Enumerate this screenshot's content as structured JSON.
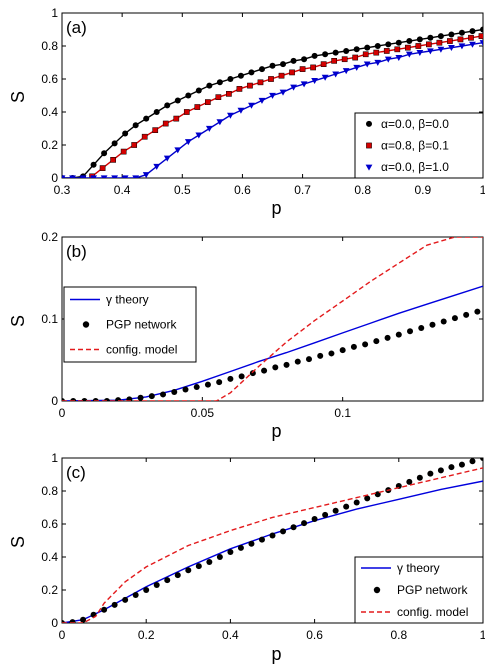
{
  "chart_data": [
    {
      "panel_label": "(a)",
      "type": "line",
      "xlabel": "p",
      "ylabel": "S",
      "xlim": [
        0.3,
        1.0
      ],
      "ylim": [
        0,
        1
      ],
      "xticks": [
        "0.3",
        "0.4",
        "0.5",
        "0.6",
        "0.7",
        "0.8",
        "0.9",
        "1"
      ],
      "yticks": [
        "0",
        "0.2",
        "0.4",
        "0.6",
        "0.8",
        "1"
      ],
      "legend_position": "bottom-right",
      "series": [
        {
          "name": "α=0.0, β=0.0",
          "color": "#000000",
          "marker": "circle",
          "x": [
            0.3,
            0.3175,
            0.335,
            0.3525,
            0.37,
            0.3875,
            0.405,
            0.4225,
            0.44,
            0.4575,
            0.475,
            0.4925,
            0.51,
            0.5275,
            0.545,
            0.5625,
            0.58,
            0.5975,
            0.615,
            0.6325,
            0.65,
            0.6675,
            0.685,
            0.7025,
            0.72,
            0.7375,
            0.755,
            0.7725,
            0.79,
            0.8075,
            0.825,
            0.8425,
            0.86,
            0.8775,
            0.895,
            0.9125,
            0.93,
            0.9475,
            0.965,
            0.9825,
            1.0
          ],
          "y": [
            0.0,
            0.0,
            0.01,
            0.08,
            0.15,
            0.21,
            0.27,
            0.32,
            0.36,
            0.4,
            0.44,
            0.47,
            0.5,
            0.53,
            0.56,
            0.58,
            0.6,
            0.62,
            0.64,
            0.66,
            0.68,
            0.69,
            0.71,
            0.72,
            0.74,
            0.75,
            0.76,
            0.77,
            0.78,
            0.79,
            0.8,
            0.81,
            0.82,
            0.83,
            0.84,
            0.85,
            0.86,
            0.87,
            0.88,
            0.89,
            0.9
          ]
        },
        {
          "name": "α=0.8, β=0.1",
          "color": "#d40000",
          "marker": "square",
          "x": [
            0.35,
            0.3675,
            0.385,
            0.4025,
            0.42,
            0.4375,
            0.455,
            0.4725,
            0.49,
            0.5075,
            0.525,
            0.5425,
            0.56,
            0.5775,
            0.595,
            0.6125,
            0.63,
            0.6475,
            0.665,
            0.6825,
            0.7,
            0.7175,
            0.735,
            0.7525,
            0.77,
            0.7875,
            0.805,
            0.8225,
            0.84,
            0.8575,
            0.875,
            0.8925,
            0.91,
            0.9275,
            0.945,
            0.9625,
            0.98,
            0.9975
          ],
          "y": [
            0.01,
            0.06,
            0.11,
            0.16,
            0.2,
            0.25,
            0.29,
            0.33,
            0.36,
            0.4,
            0.43,
            0.46,
            0.49,
            0.51,
            0.54,
            0.56,
            0.58,
            0.6,
            0.62,
            0.64,
            0.66,
            0.67,
            0.69,
            0.71,
            0.72,
            0.73,
            0.75,
            0.76,
            0.77,
            0.78,
            0.79,
            0.8,
            0.81,
            0.82,
            0.83,
            0.84,
            0.85,
            0.86
          ]
        },
        {
          "name": "α=0.0, β=1.0",
          "color": "#0000cc",
          "marker": "triangle-down",
          "x": [
            0.3,
            0.3175,
            0.335,
            0.3525,
            0.37,
            0.3875,
            0.405,
            0.4225,
            0.44,
            0.4575,
            0.475,
            0.4925,
            0.51,
            0.5275,
            0.545,
            0.5625,
            0.58,
            0.5975,
            0.615,
            0.6325,
            0.65,
            0.6675,
            0.685,
            0.7025,
            0.72,
            0.7375,
            0.755,
            0.7725,
            0.79,
            0.8075,
            0.825,
            0.8425,
            0.86,
            0.8775,
            0.895,
            0.9125,
            0.93,
            0.9475,
            0.965,
            0.9825,
            1.0
          ],
          "y": [
            0.0,
            0.0,
            0.0,
            0.0,
            0.0,
            0.0,
            0.0,
            0.0,
            0.02,
            0.07,
            0.12,
            0.17,
            0.22,
            0.26,
            0.3,
            0.34,
            0.38,
            0.41,
            0.44,
            0.47,
            0.5,
            0.52,
            0.55,
            0.57,
            0.59,
            0.61,
            0.63,
            0.65,
            0.67,
            0.69,
            0.7,
            0.72,
            0.73,
            0.75,
            0.76,
            0.77,
            0.78,
            0.79,
            0.8,
            0.81,
            0.82
          ]
        }
      ]
    },
    {
      "panel_label": "(b)",
      "type": "line",
      "xlabel": "p",
      "ylabel": "S",
      "xlim": [
        0,
        0.15
      ],
      "ylim": [
        0,
        0.2
      ],
      "xticks": [
        "0",
        "0.05",
        "0.1"
      ],
      "xtick_values": [
        0,
        0.05,
        0.1
      ],
      "yticks": [
        "0",
        "0.1",
        "0.2"
      ],
      "ytick_values": [
        0,
        0.1,
        0.2
      ],
      "legend_position": "top-left",
      "series": [
        {
          "name": "γ theory",
          "color": "#0000dd",
          "style": "solid",
          "x": [
            0,
            0.02,
            0.03,
            0.04,
            0.05,
            0.06,
            0.07,
            0.08,
            0.09,
            0.1,
            0.11,
            0.12,
            0.13,
            0.14,
            0.15
          ],
          "y": [
            0,
            0.001,
            0.005,
            0.013,
            0.024,
            0.036,
            0.048,
            0.059,
            0.071,
            0.083,
            0.095,
            0.107,
            0.118,
            0.129,
            0.14
          ]
        },
        {
          "name": "PGP network",
          "color": "#000000",
          "style": "markers",
          "x": [
            0.0,
            0.004,
            0.008,
            0.012,
            0.016,
            0.02,
            0.024,
            0.028,
            0.032,
            0.036,
            0.04,
            0.044,
            0.048,
            0.052,
            0.056,
            0.06,
            0.064,
            0.068,
            0.072,
            0.076,
            0.08,
            0.084,
            0.088,
            0.092,
            0.096,
            0.1,
            0.104,
            0.108,
            0.112,
            0.116,
            0.12,
            0.124,
            0.128,
            0.132,
            0.136,
            0.14,
            0.144,
            0.148
          ],
          "y": [
            0.0,
            0.0,
            0.0,
            0.0,
            0.0,
            0.001,
            0.002,
            0.004,
            0.006,
            0.008,
            0.011,
            0.014,
            0.017,
            0.02,
            0.023,
            0.027,
            0.03,
            0.034,
            0.037,
            0.041,
            0.044,
            0.048,
            0.051,
            0.055,
            0.058,
            0.062,
            0.066,
            0.069,
            0.073,
            0.077,
            0.081,
            0.085,
            0.089,
            0.093,
            0.097,
            0.101,
            0.105,
            0.109
          ]
        },
        {
          "name": "config. model",
          "color": "#e31a1c",
          "style": "dashed",
          "x": [
            0,
            0.04,
            0.05,
            0.055,
            0.06,
            0.07,
            0.08,
            0.09,
            0.1,
            0.11,
            0.12,
            0.13,
            0.14,
            0.15
          ],
          "y": [
            0,
            0,
            0,
            0,
            0.01,
            0.042,
            0.072,
            0.098,
            0.122,
            0.146,
            0.168,
            0.19,
            0.211,
            0.232
          ]
        }
      ]
    },
    {
      "panel_label": "(c)",
      "type": "line",
      "xlabel": "p",
      "ylabel": "S",
      "xlim": [
        0,
        1
      ],
      "ylim": [
        0,
        1
      ],
      "xticks": [
        "0",
        "0.2",
        "0.4",
        "0.6",
        "0.8",
        "1"
      ],
      "yticks": [
        "0",
        "0.2",
        "0.4",
        "0.6",
        "0.8",
        "1"
      ],
      "legend_position": "bottom-right",
      "series": [
        {
          "name": "γ theory",
          "color": "#0000dd",
          "style": "solid",
          "x": [
            0,
            0.05,
            0.1,
            0.15,
            0.2,
            0.3,
            0.4,
            0.5,
            0.6,
            0.7,
            0.8,
            0.9,
            1.0
          ],
          "y": [
            0,
            0.02,
            0.08,
            0.15,
            0.22,
            0.34,
            0.45,
            0.54,
            0.62,
            0.69,
            0.75,
            0.81,
            0.86
          ]
        },
        {
          "name": "PGP network",
          "color": "#000000",
          "style": "markers",
          "x": [
            0.0,
            0.025,
            0.05,
            0.075,
            0.1,
            0.125,
            0.15,
            0.175,
            0.2,
            0.225,
            0.25,
            0.275,
            0.3,
            0.325,
            0.35,
            0.375,
            0.4,
            0.425,
            0.45,
            0.475,
            0.5,
            0.525,
            0.55,
            0.575,
            0.6,
            0.625,
            0.65,
            0.675,
            0.7,
            0.725,
            0.75,
            0.775,
            0.8,
            0.825,
            0.85,
            0.875,
            0.9,
            0.925,
            0.95,
            0.975,
            1.0
          ],
          "y": [
            0.0,
            0.005,
            0.02,
            0.05,
            0.08,
            0.11,
            0.14,
            0.17,
            0.2,
            0.23,
            0.26,
            0.29,
            0.32,
            0.345,
            0.37,
            0.4,
            0.43,
            0.455,
            0.48,
            0.505,
            0.53,
            0.555,
            0.58,
            0.605,
            0.63,
            0.655,
            0.68,
            0.705,
            0.73,
            0.755,
            0.78,
            0.805,
            0.83,
            0.855,
            0.88,
            0.905,
            0.925,
            0.945,
            0.96,
            0.98,
            1.0
          ]
        },
        {
          "name": "config. model",
          "color": "#e31a1c",
          "style": "dashed",
          "x": [
            0,
            0.05,
            0.08,
            0.1,
            0.15,
            0.2,
            0.3,
            0.4,
            0.5,
            0.6,
            0.7,
            0.8,
            0.9,
            1.0
          ],
          "y": [
            0,
            0.0,
            0.04,
            0.12,
            0.25,
            0.34,
            0.47,
            0.56,
            0.64,
            0.7,
            0.76,
            0.82,
            0.88,
            0.94
          ]
        }
      ]
    }
  ]
}
